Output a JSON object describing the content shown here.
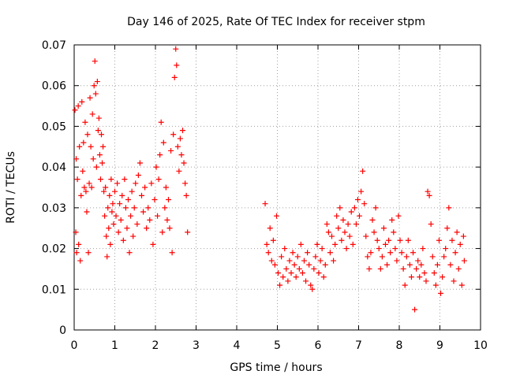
{
  "chart_data": {
    "type": "scatter",
    "title": "Day 146 of 2025, Rate Of TEC Index for receiver stpm",
    "xlabel": "GPS time / hours",
    "ylabel": "ROTI / TECUs",
    "xlim": [
      0,
      10
    ],
    "ylim": [
      0,
      0.07
    ],
    "xticks": [
      "0",
      "1",
      "2",
      "3",
      "4",
      "5",
      "6",
      "7",
      "8",
      "9",
      "10"
    ],
    "yticks": [
      "0",
      "0.01",
      "0.02",
      "0.03",
      "0.04",
      "0.05",
      "0.06",
      "0.07"
    ],
    "grid": true,
    "marker": "+",
    "series": [
      {
        "name": "ROTI",
        "color": "#ff0000",
        "points": [
          [
            0.02,
            0.054
          ],
          [
            0.04,
            0.024
          ],
          [
            0.05,
            0.042
          ],
          [
            0.06,
            0.019
          ],
          [
            0.08,
            0.037
          ],
          [
            0.1,
            0.055
          ],
          [
            0.11,
            0.021
          ],
          [
            0.13,
            0.045
          ],
          [
            0.15,
            0.017
          ],
          [
            0.17,
            0.033
          ],
          [
            0.19,
            0.056
          ],
          [
            0.21,
            0.039
          ],
          [
            0.23,
            0.046
          ],
          [
            0.25,
            0.035
          ],
          [
            0.27,
            0.051
          ],
          [
            0.29,
            0.034
          ],
          [
            0.31,
            0.029
          ],
          [
            0.33,
            0.048
          ],
          [
            0.35,
            0.019
          ],
          [
            0.37,
            0.036
          ],
          [
            0.39,
            0.057
          ],
          [
            0.41,
            0.045
          ],
          [
            0.43,
            0.035
          ],
          [
            0.45,
            0.053
          ],
          [
            0.47,
            0.042
          ],
          [
            0.49,
            0.06
          ],
          [
            0.51,
            0.066
          ],
          [
            0.53,
            0.058
          ],
          [
            0.55,
            0.04
          ],
          [
            0.57,
            0.061
          ],
          [
            0.59,
            0.049
          ],
          [
            0.61,
            0.052
          ],
          [
            0.63,
            0.043
          ],
          [
            0.65,
            0.037
          ],
          [
            0.67,
            0.048
          ],
          [
            0.69,
            0.041
          ],
          [
            0.71,
            0.045
          ],
          [
            0.73,
            0.034
          ],
          [
            0.75,
            0.028
          ],
          [
            0.77,
            0.035
          ],
          [
            0.79,
            0.023
          ],
          [
            0.81,
            0.018
          ],
          [
            0.83,
            0.03
          ],
          [
            0.85,
            0.025
          ],
          [
            0.87,
            0.033
          ],
          [
            0.89,
            0.021
          ],
          [
            0.91,
            0.037
          ],
          [
            0.93,
            0.029
          ],
          [
            0.95,
            0.031
          ],
          [
            0.97,
            0.026
          ],
          [
            1.0,
            0.034
          ],
          [
            1.03,
            0.028
          ],
          [
            1.06,
            0.036
          ],
          [
            1.09,
            0.024
          ],
          [
            1.12,
            0.031
          ],
          [
            1.15,
            0.027
          ],
          [
            1.18,
            0.033
          ],
          [
            1.21,
            0.022
          ],
          [
            1.24,
            0.037
          ],
          [
            1.27,
            0.03
          ],
          [
            1.3,
            0.025
          ],
          [
            1.33,
            0.032
          ],
          [
            1.36,
            0.019
          ],
          [
            1.39,
            0.028
          ],
          [
            1.42,
            0.034
          ],
          [
            1.45,
            0.023
          ],
          [
            1.48,
            0.03
          ],
          [
            1.51,
            0.036
          ],
          [
            1.55,
            0.026
          ],
          [
            1.58,
            0.038
          ],
          [
            1.62,
            0.041
          ],
          [
            1.66,
            0.033
          ],
          [
            1.7,
            0.029
          ],
          [
            1.74,
            0.035
          ],
          [
            1.78,
            0.025
          ],
          [
            1.82,
            0.03
          ],
          [
            1.86,
            0.027
          ],
          [
            1.9,
            0.036
          ],
          [
            1.94,
            0.021
          ],
          [
            1.98,
            0.032
          ],
          [
            2.02,
            0.04
          ],
          [
            2.05,
            0.028
          ],
          [
            2.08,
            0.037
          ],
          [
            2.11,
            0.043
          ],
          [
            2.14,
            0.051
          ],
          [
            2.17,
            0.024
          ],
          [
            2.2,
            0.046
          ],
          [
            2.23,
            0.03
          ],
          [
            2.26,
            0.035
          ],
          [
            2.29,
            0.027
          ],
          [
            2.32,
            0.032
          ],
          [
            2.35,
            0.025
          ],
          [
            2.38,
            0.044
          ],
          [
            2.41,
            0.019
          ],
          [
            2.44,
            0.048
          ],
          [
            2.47,
            0.062
          ],
          [
            2.5,
            0.069
          ],
          [
            2.52,
            0.065
          ],
          [
            2.55,
            0.045
          ],
          [
            2.58,
            0.039
          ],
          [
            2.61,
            0.047
          ],
          [
            2.64,
            0.043
          ],
          [
            2.67,
            0.049
          ],
          [
            2.7,
            0.041
          ],
          [
            2.73,
            0.036
          ],
          [
            2.76,
            0.033
          ],
          [
            2.79,
            0.024
          ],
          [
            4.7,
            0.031
          ],
          [
            4.74,
            0.021
          ],
          [
            4.78,
            0.019
          ],
          [
            4.82,
            0.025
          ],
          [
            4.86,
            0.017
          ],
          [
            4.9,
            0.022
          ],
          [
            4.94,
            0.016
          ],
          [
            4.98,
            0.028
          ],
          [
            5.02,
            0.014
          ],
          [
            5.06,
            0.011
          ],
          [
            5.1,
            0.018
          ],
          [
            5.14,
            0.013
          ],
          [
            5.18,
            0.02
          ],
          [
            5.22,
            0.015
          ],
          [
            5.26,
            0.012
          ],
          [
            5.3,
            0.017
          ],
          [
            5.34,
            0.014
          ],
          [
            5.38,
            0.019
          ],
          [
            5.42,
            0.016
          ],
          [
            5.46,
            0.013
          ],
          [
            5.5,
            0.018
          ],
          [
            5.54,
            0.015
          ],
          [
            5.58,
            0.021
          ],
          [
            5.62,
            0.014
          ],
          [
            5.66,
            0.017
          ],
          [
            5.7,
            0.012
          ],
          [
            5.74,
            0.019
          ],
          [
            5.78,
            0.016
          ],
          [
            5.82,
            0.011
          ],
          [
            5.86,
            0.01
          ],
          [
            5.9,
            0.015
          ],
          [
            5.94,
            0.018
          ],
          [
            5.98,
            0.021
          ],
          [
            6.02,
            0.014
          ],
          [
            6.06,
            0.017
          ],
          [
            6.1,
            0.02
          ],
          [
            6.14,
            0.013
          ],
          [
            6.18,
            0.016
          ],
          [
            6.22,
            0.026
          ],
          [
            6.26,
            0.024
          ],
          [
            6.3,
            0.019
          ],
          [
            6.34,
            0.023
          ],
          [
            6.38,
            0.017
          ],
          [
            6.42,
            0.021
          ],
          [
            6.46,
            0.028
          ],
          [
            6.5,
            0.025
          ],
          [
            6.54,
            0.03
          ],
          [
            6.58,
            0.022
          ],
          [
            6.62,
            0.027
          ],
          [
            6.66,
            0.024
          ],
          [
            6.7,
            0.02
          ],
          [
            6.74,
            0.026
          ],
          [
            6.78,
            0.023
          ],
          [
            6.82,
            0.029
          ],
          [
            6.86,
            0.021
          ],
          [
            6.9,
            0.03
          ],
          [
            6.94,
            0.026
          ],
          [
            6.98,
            0.032
          ],
          [
            7.02,
            0.028
          ],
          [
            7.06,
            0.034
          ],
          [
            7.1,
            0.039
          ],
          [
            7.14,
            0.031
          ],
          [
            7.18,
            0.023
          ],
          [
            7.22,
            0.018
          ],
          [
            7.26,
            0.015
          ],
          [
            7.3,
            0.019
          ],
          [
            7.34,
            0.027
          ],
          [
            7.38,
            0.024
          ],
          [
            7.42,
            0.03
          ],
          [
            7.46,
            0.022
          ],
          [
            7.5,
            0.02
          ],
          [
            7.54,
            0.015
          ],
          [
            7.58,
            0.018
          ],
          [
            7.62,
            0.025
          ],
          [
            7.66,
            0.021
          ],
          [
            7.7,
            0.016
          ],
          [
            7.74,
            0.022
          ],
          [
            7.78,
            0.019
          ],
          [
            7.82,
            0.027
          ],
          [
            7.86,
            0.024
          ],
          [
            7.9,
            0.02
          ],
          [
            7.94,
            0.017
          ],
          [
            7.98,
            0.028
          ],
          [
            8.02,
            0.022
          ],
          [
            8.06,
            0.019
          ],
          [
            8.1,
            0.015
          ],
          [
            8.14,
            0.011
          ],
          [
            8.18,
            0.018
          ],
          [
            8.22,
            0.022
          ],
          [
            8.26,
            0.016
          ],
          [
            8.3,
            0.013
          ],
          [
            8.34,
            0.019
          ],
          [
            8.38,
            0.005
          ],
          [
            8.42,
            0.015
          ],
          [
            8.46,
            0.017
          ],
          [
            8.5,
            0.013
          ],
          [
            8.54,
            0.016
          ],
          [
            8.58,
            0.02
          ],
          [
            8.62,
            0.014
          ],
          [
            8.66,
            0.012
          ],
          [
            8.7,
            0.034
          ],
          [
            8.74,
            0.033
          ],
          [
            8.78,
            0.026
          ],
          [
            8.82,
            0.018
          ],
          [
            8.86,
            0.014
          ],
          [
            8.9,
            0.011
          ],
          [
            8.94,
            0.016
          ],
          [
            8.98,
            0.022
          ],
          [
            9.02,
            0.009
          ],
          [
            9.06,
            0.013
          ],
          [
            9.1,
            0.018
          ],
          [
            9.14,
            0.02
          ],
          [
            9.18,
            0.025
          ],
          [
            9.22,
            0.03
          ],
          [
            9.26,
            0.016
          ],
          [
            9.3,
            0.022
          ],
          [
            9.34,
            0.012
          ],
          [
            9.38,
            0.019
          ],
          [
            9.42,
            0.024
          ],
          [
            9.46,
            0.015
          ],
          [
            9.5,
            0.021
          ],
          [
            9.54,
            0.011
          ],
          [
            9.58,
            0.023
          ],
          [
            9.6,
            0.017
          ]
        ]
      }
    ]
  }
}
